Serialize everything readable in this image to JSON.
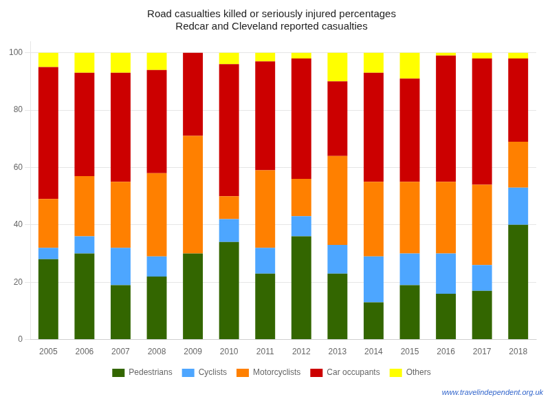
{
  "chart_data": {
    "type": "bar",
    "stacked": true,
    "title": "Road casualties killed or seriously injured percentages\nRedcar and Cleveland reported casualties",
    "annotations": [
      "www.travelindependent.org.uk"
    ],
    "categories": [
      "2005",
      "2006",
      "2007",
      "2008",
      "2009",
      "2010",
      "2011",
      "2012",
      "2013",
      "2014",
      "2015",
      "2016",
      "2017",
      "2018"
    ],
    "series": [
      {
        "name": "Pedestrians",
        "color": "#336600",
        "values": [
          28,
          30,
          19,
          22,
          30,
          34,
          23,
          36,
          23,
          13,
          19,
          16,
          17,
          40
        ]
      },
      {
        "name": "Cyclists",
        "color": "#4da6ff",
        "values": [
          4,
          6,
          13,
          7,
          0,
          8,
          9,
          7,
          10,
          16,
          11,
          14,
          9,
          13
        ]
      },
      {
        "name": "Motorcyclists",
        "color": "#ff8000",
        "values": [
          17,
          21,
          23,
          29,
          41,
          8,
          27,
          13,
          31,
          26,
          25,
          25,
          28,
          16
        ]
      },
      {
        "name": "Car occupants",
        "color": "#cc0000",
        "values": [
          46,
          36,
          38,
          36,
          29,
          46,
          38,
          42,
          26,
          38,
          36,
          44,
          44,
          29
        ]
      },
      {
        "name": "Others",
        "color": "#ffff00",
        "values": [
          5,
          7,
          7,
          6,
          0,
          4,
          3,
          2,
          10,
          7,
          9,
          1,
          2,
          2
        ]
      }
    ],
    "ylim": [
      0,
      104
    ],
    "yticks": [
      0,
      20,
      40,
      60,
      80,
      100
    ],
    "grid": true,
    "legend": "bottom"
  }
}
